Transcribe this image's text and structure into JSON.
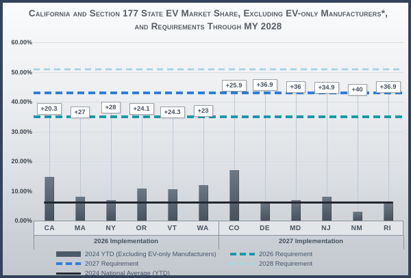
{
  "title": "California and Section 177 State EV Market Share, Excluding EV-only Manufacturers*, and Requirements Through MY 2028",
  "chart_data": {
    "type": "bar",
    "title": "California and Section 177 State EV Market Share, Excluding EV-only Manufacturers*, and Requirements Through MY 2028",
    "series_name": "2024 YTD (Excluding EV-only Manufacturers)",
    "ylim": [
      0,
      60
    ],
    "grid": true,
    "y_ticks": [
      {
        "value": 60,
        "label": "60.00%"
      },
      {
        "value": 50,
        "label": "50.00%"
      },
      {
        "value": 40,
        "label": "40.00%"
      },
      {
        "value": 30,
        "label": "30.00%"
      },
      {
        "value": 20,
        "label": "20.00%"
      },
      {
        "value": 10,
        "label": "10.00%"
      },
      {
        "value": 0,
        "label": "0.00%"
      }
    ],
    "groups": [
      {
        "label": "2026 Implementation",
        "categories": [
          "CA",
          "MA",
          "NY",
          "OR",
          "VT",
          "WA"
        ],
        "values": [
          14.7,
          8.0,
          7.0,
          10.9,
          10.7,
          12.0
        ],
        "gap_labels": [
          "+20.3",
          "+27",
          "+28",
          "+24.1",
          "+24.3",
          "+23"
        ],
        "label_tops": [
          147,
          152,
          145,
          147,
          152,
          150
        ]
      },
      {
        "label": "2027 Implementation",
        "categories": [
          "CO",
          "DE",
          "MD",
          "NJ",
          "NM",
          "RI"
        ],
        "values": [
          17.1,
          6.1,
          7.0,
          8.1,
          3.0,
          6.1
        ],
        "gap_labels": [
          "+25.9",
          "+36.9",
          "+36",
          "+34.9",
          "+40",
          "+36.9"
        ],
        "label_tops": [
          113,
          112,
          115,
          116,
          119,
          115
        ]
      }
    ],
    "requirement_lines": [
      {
        "name": "2026 Requirement",
        "value": 35,
        "color": "#1898a9",
        "thickness": 4,
        "dash": 10,
        "gap": 6
      },
      {
        "name": "2027 Requirement",
        "value": 43,
        "color": "#2f7de1",
        "thickness": 4,
        "dash": 10,
        "gap": 6
      },
      {
        "name": "2028 Requirement",
        "value": 51,
        "color": "#a9d6e2",
        "thickness": 3,
        "dash": 9,
        "gap": 6
      }
    ],
    "national_average": {
      "name": "2024 National Average (YTD)",
      "value": 6.0,
      "color": "#23272e"
    }
  },
  "legend": {
    "columns": [
      {
        "items": [
          {
            "swatch": "bar",
            "color": "#4d5a68",
            "label": "2024 YTD (Excluding EV-only Manufacturers)"
          },
          {
            "swatch": "dash",
            "color": "#2f7de1",
            "label": "2027 Requirement"
          },
          {
            "swatch": "line",
            "color": "#23272e",
            "label": "2024 National Average (YTD)"
          }
        ]
      },
      {
        "items": [
          {
            "swatch": "dash",
            "color": "#1898a9",
            "label": "2026 Requirement"
          },
          {
            "swatch": "dash",
            "color": "#a9d6e2",
            "label": "2028 Requirement"
          }
        ]
      }
    ]
  },
  "colors": {
    "frame_border": "#33435c",
    "bar": "#55616d",
    "gridline": "#d8dbde",
    "leader_line": "#bcc8d8",
    "label_box_border": "#9aa1a8",
    "axis_band_border": "#8a939b",
    "title_text": "#575d64"
  }
}
